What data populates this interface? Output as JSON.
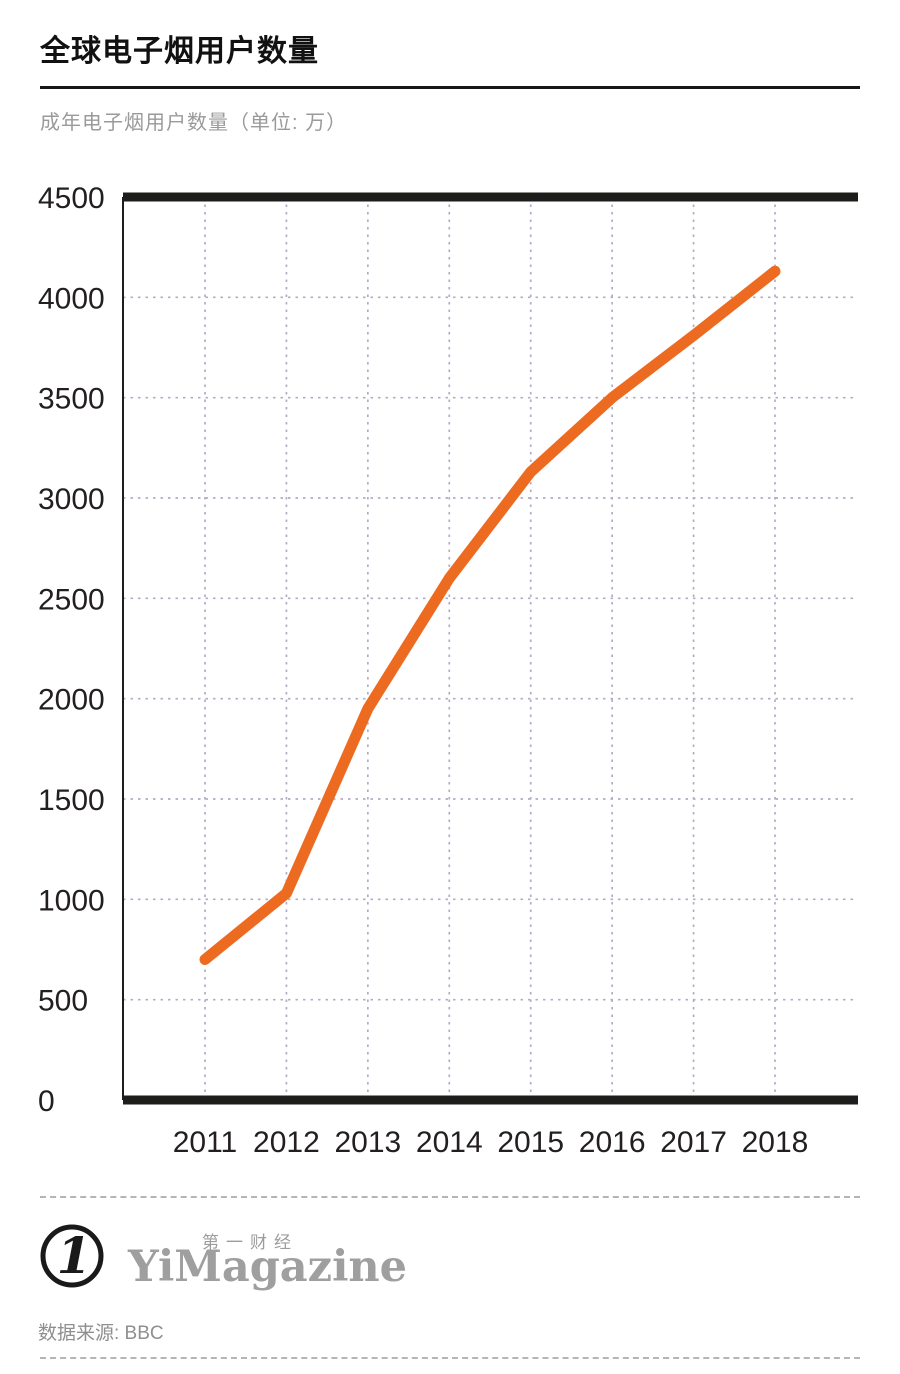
{
  "header": {
    "title": "全球电子烟用户数量",
    "subtitle": "成年电子烟用户数量（单位: 万）"
  },
  "chart_data": {
    "type": "line",
    "title": "全球电子烟用户数量",
    "ylabel": "成年电子烟用户数量（单位: 万）",
    "categories": [
      "2011",
      "2012",
      "2013",
      "2014",
      "2015",
      "2016",
      "2017",
      "2018"
    ],
    "values": [
      700,
      1030,
      1950,
      2600,
      3130,
      3500,
      3810,
      4130
    ],
    "ylim": [
      0,
      4500
    ],
    "ytick_step": 500,
    "line_color": "#ED6B21",
    "grid": "dashed",
    "grid_color": "#b4abc6",
    "axis_color": "#1d1d1b",
    "legend": "none"
  },
  "footer": {
    "logo_glyph": "1",
    "brand_cn": "第一财经",
    "brand_en": "YiMagazine",
    "source": "数据来源: BBC"
  }
}
